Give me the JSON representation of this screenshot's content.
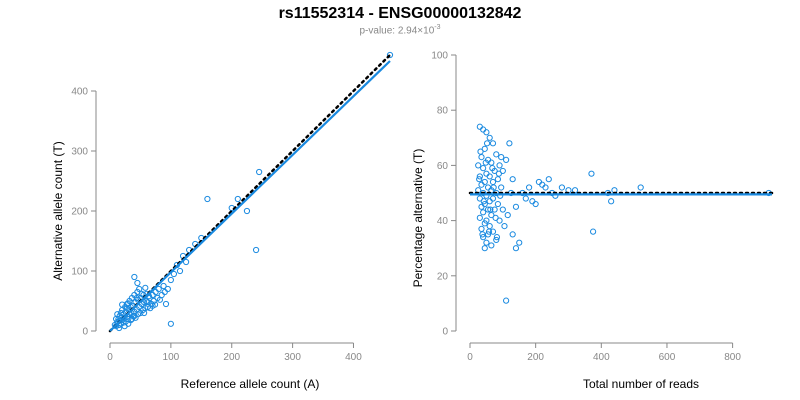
{
  "header": {
    "title": "rs11552314 - ENSG00000132842",
    "pvalue_prefix": "p-value: 2.94×10",
    "pvalue_exponent": "-3"
  },
  "colors": {
    "points": "#1a8ae0",
    "fit": "#1a8ae0",
    "expected": "#000000",
    "axis": "#888888"
  },
  "chart_data": [
    {
      "type": "scatter",
      "xlabel": "Reference allele count (A)",
      "ylabel": "Alternative allele count (T)",
      "xlim": [
        0,
        460
      ],
      "ylim": [
        0,
        460
      ],
      "xticks": [
        0,
        100,
        200,
        300,
        400
      ],
      "yticks": [
        0,
        100,
        200,
        300,
        400
      ],
      "fit_line": [
        [
          0,
          0
        ],
        [
          460,
          450
        ]
      ],
      "expected_line": [
        [
          0,
          0
        ],
        [
          460,
          460
        ]
      ],
      "points": [
        [
          10,
          8
        ],
        [
          12,
          15
        ],
        [
          14,
          20
        ],
        [
          15,
          10
        ],
        [
          16,
          25
        ],
        [
          18,
          12
        ],
        [
          18,
          30
        ],
        [
          20,
          18
        ],
        [
          20,
          35
        ],
        [
          22,
          14
        ],
        [
          22,
          28
        ],
        [
          24,
          22
        ],
        [
          25,
          40
        ],
        [
          26,
          16
        ],
        [
          26,
          32
        ],
        [
          28,
          24
        ],
        [
          28,
          45
        ],
        [
          30,
          20
        ],
        [
          30,
          36
        ],
        [
          32,
          28
        ],
        [
          32,
          50
        ],
        [
          34,
          18
        ],
        [
          34,
          40
        ],
        [
          35,
          30
        ],
        [
          36,
          55
        ],
        [
          38,
          25
        ],
        [
          38,
          42
        ],
        [
          40,
          32
        ],
        [
          40,
          60
        ],
        [
          42,
          22
        ],
        [
          42,
          48
        ],
        [
          44,
          36
        ],
        [
          45,
          65
        ],
        [
          46,
          28
        ],
        [
          46,
          52
        ],
        [
          48,
          40
        ],
        [
          48,
          70
        ],
        [
          50,
          30
        ],
        [
          50,
          55
        ],
        [
          52,
          45
        ],
        [
          54,
          35
        ],
        [
          55,
          60
        ],
        [
          56,
          48
        ],
        [
          58,
          38
        ],
        [
          60,
          62
        ],
        [
          60,
          50
        ],
        [
          62,
          40
        ],
        [
          65,
          55
        ],
        [
          68,
          45
        ],
        [
          70,
          60
        ],
        [
          72,
          50
        ],
        [
          75,
          65
        ],
        [
          78,
          55
        ],
        [
          80,
          70
        ],
        [
          85,
          60
        ],
        [
          88,
          75
        ],
        [
          90,
          65
        ],
        [
          95,
          70
        ],
        [
          100,
          85
        ],
        [
          100,
          12
        ],
        [
          105,
          95
        ],
        [
          110,
          110
        ],
        [
          115,
          100
        ],
        [
          120,
          125
        ],
        [
          125,
          115
        ],
        [
          130,
          135
        ],
        [
          140,
          145
        ],
        [
          150,
          155
        ],
        [
          160,
          220
        ],
        [
          200,
          205
        ],
        [
          210,
          220
        ],
        [
          225,
          200
        ],
        [
          240,
          135
        ],
        [
          245,
          265
        ],
        [
          15,
          5
        ],
        [
          8,
          10
        ],
        [
          12,
          28
        ],
        [
          24,
          8
        ],
        [
          36,
          20
        ],
        [
          44,
          55
        ],
        [
          20,
          44
        ],
        [
          30,
          46
        ],
        [
          40,
          25
        ],
        [
          52,
          62
        ],
        [
          58,
          72
        ],
        [
          62,
          48
        ],
        [
          66,
          38
        ],
        [
          74,
          44
        ],
        [
          82,
          52
        ],
        [
          92,
          45
        ],
        [
          30,
          12
        ],
        [
          40,
          90
        ],
        [
          45,
          80
        ],
        [
          28,
          38
        ],
        [
          16,
          18
        ],
        [
          10,
          20
        ],
        [
          56,
          30
        ],
        [
          64,
          58
        ],
        [
          70,
          42
        ],
        [
          460,
          460
        ]
      ]
    },
    {
      "type": "scatter",
      "xlabel": "Total number of reads",
      "ylabel": "Percentage alternative (T)",
      "xlim": [
        0,
        920
      ],
      "ylim": [
        0,
        100
      ],
      "xticks": [
        0,
        200,
        400,
        600,
        800
      ],
      "yticks": [
        0,
        20,
        40,
        60,
        80,
        100
      ],
      "fit_line": [
        [
          0,
          49.5
        ],
        [
          920,
          49.5
        ]
      ],
      "expected_line": [
        [
          0,
          50
        ],
        [
          920,
          50
        ]
      ],
      "points": [
        [
          30,
          74
        ],
        [
          40,
          73
        ],
        [
          50,
          72
        ],
        [
          60,
          70
        ],
        [
          70,
          68
        ],
        [
          45,
          66
        ],
        [
          80,
          64
        ],
        [
          35,
          63
        ],
        [
          55,
          62
        ],
        [
          65,
          61
        ],
        [
          25,
          60
        ],
        [
          90,
          60
        ],
        [
          40,
          59
        ],
        [
          75,
          58
        ],
        [
          50,
          57
        ],
        [
          30,
          56
        ],
        [
          60,
          56
        ],
        [
          85,
          55
        ],
        [
          45,
          54
        ],
        [
          70,
          54
        ],
        [
          35,
          53
        ],
        [
          55,
          52
        ],
        [
          95,
          52
        ],
        [
          25,
          51
        ],
        [
          65,
          51
        ],
        [
          40,
          50
        ],
        [
          80,
          50
        ],
        [
          50,
          49
        ],
        [
          30,
          48
        ],
        [
          70,
          48
        ],
        [
          60,
          47
        ],
        [
          45,
          46
        ],
        [
          85,
          46
        ],
        [
          35,
          45
        ],
        [
          55,
          44
        ],
        [
          75,
          44
        ],
        [
          40,
          43
        ],
        [
          65,
          42
        ],
        [
          30,
          41
        ],
        [
          50,
          40
        ],
        [
          90,
          40
        ],
        [
          45,
          39
        ],
        [
          60,
          38
        ],
        [
          35,
          37
        ],
        [
          70,
          36
        ],
        [
          55,
          35
        ],
        [
          40,
          34
        ],
        [
          80,
          33
        ],
        [
          50,
          32
        ],
        [
          65,
          31
        ],
        [
          45,
          30
        ],
        [
          100,
          58
        ],
        [
          110,
          62
        ],
        [
          120,
          68
        ],
        [
          130,
          55
        ],
        [
          140,
          45
        ],
        [
          150,
          32
        ],
        [
          160,
          50
        ],
        [
          170,
          48
        ],
        [
          180,
          52
        ],
        [
          190,
          47
        ],
        [
          200,
          46
        ],
        [
          210,
          54
        ],
        [
          220,
          53
        ],
        [
          230,
          52
        ],
        [
          240,
          55
        ],
        [
          250,
          50
        ],
        [
          260,
          49
        ],
        [
          280,
          52
        ],
        [
          300,
          51
        ],
        [
          320,
          51
        ],
        [
          370,
          57
        ],
        [
          375,
          36
        ],
        [
          420,
          50
        ],
        [
          430,
          47
        ],
        [
          440,
          51
        ],
        [
          520,
          52
        ],
        [
          110,
          11
        ],
        [
          130,
          35
        ],
        [
          140,
          30
        ],
        [
          100,
          44
        ],
        [
          105,
          38
        ],
        [
          115,
          42
        ],
        [
          125,
          50
        ],
        [
          95,
          63
        ],
        [
          88,
          57
        ],
        [
          78,
          41
        ],
        [
          68,
          59
        ],
        [
          58,
          36
        ],
        [
          48,
          61
        ],
        [
          38,
          35
        ],
        [
          28,
          55
        ],
        [
          52,
          68
        ],
        [
          62,
          44
        ],
        [
          72,
          52
        ],
        [
          82,
          34
        ],
        [
          92,
          49
        ],
        [
          42,
          47
        ],
        [
          32,
          65
        ],
        [
          910,
          50
        ]
      ]
    }
  ]
}
